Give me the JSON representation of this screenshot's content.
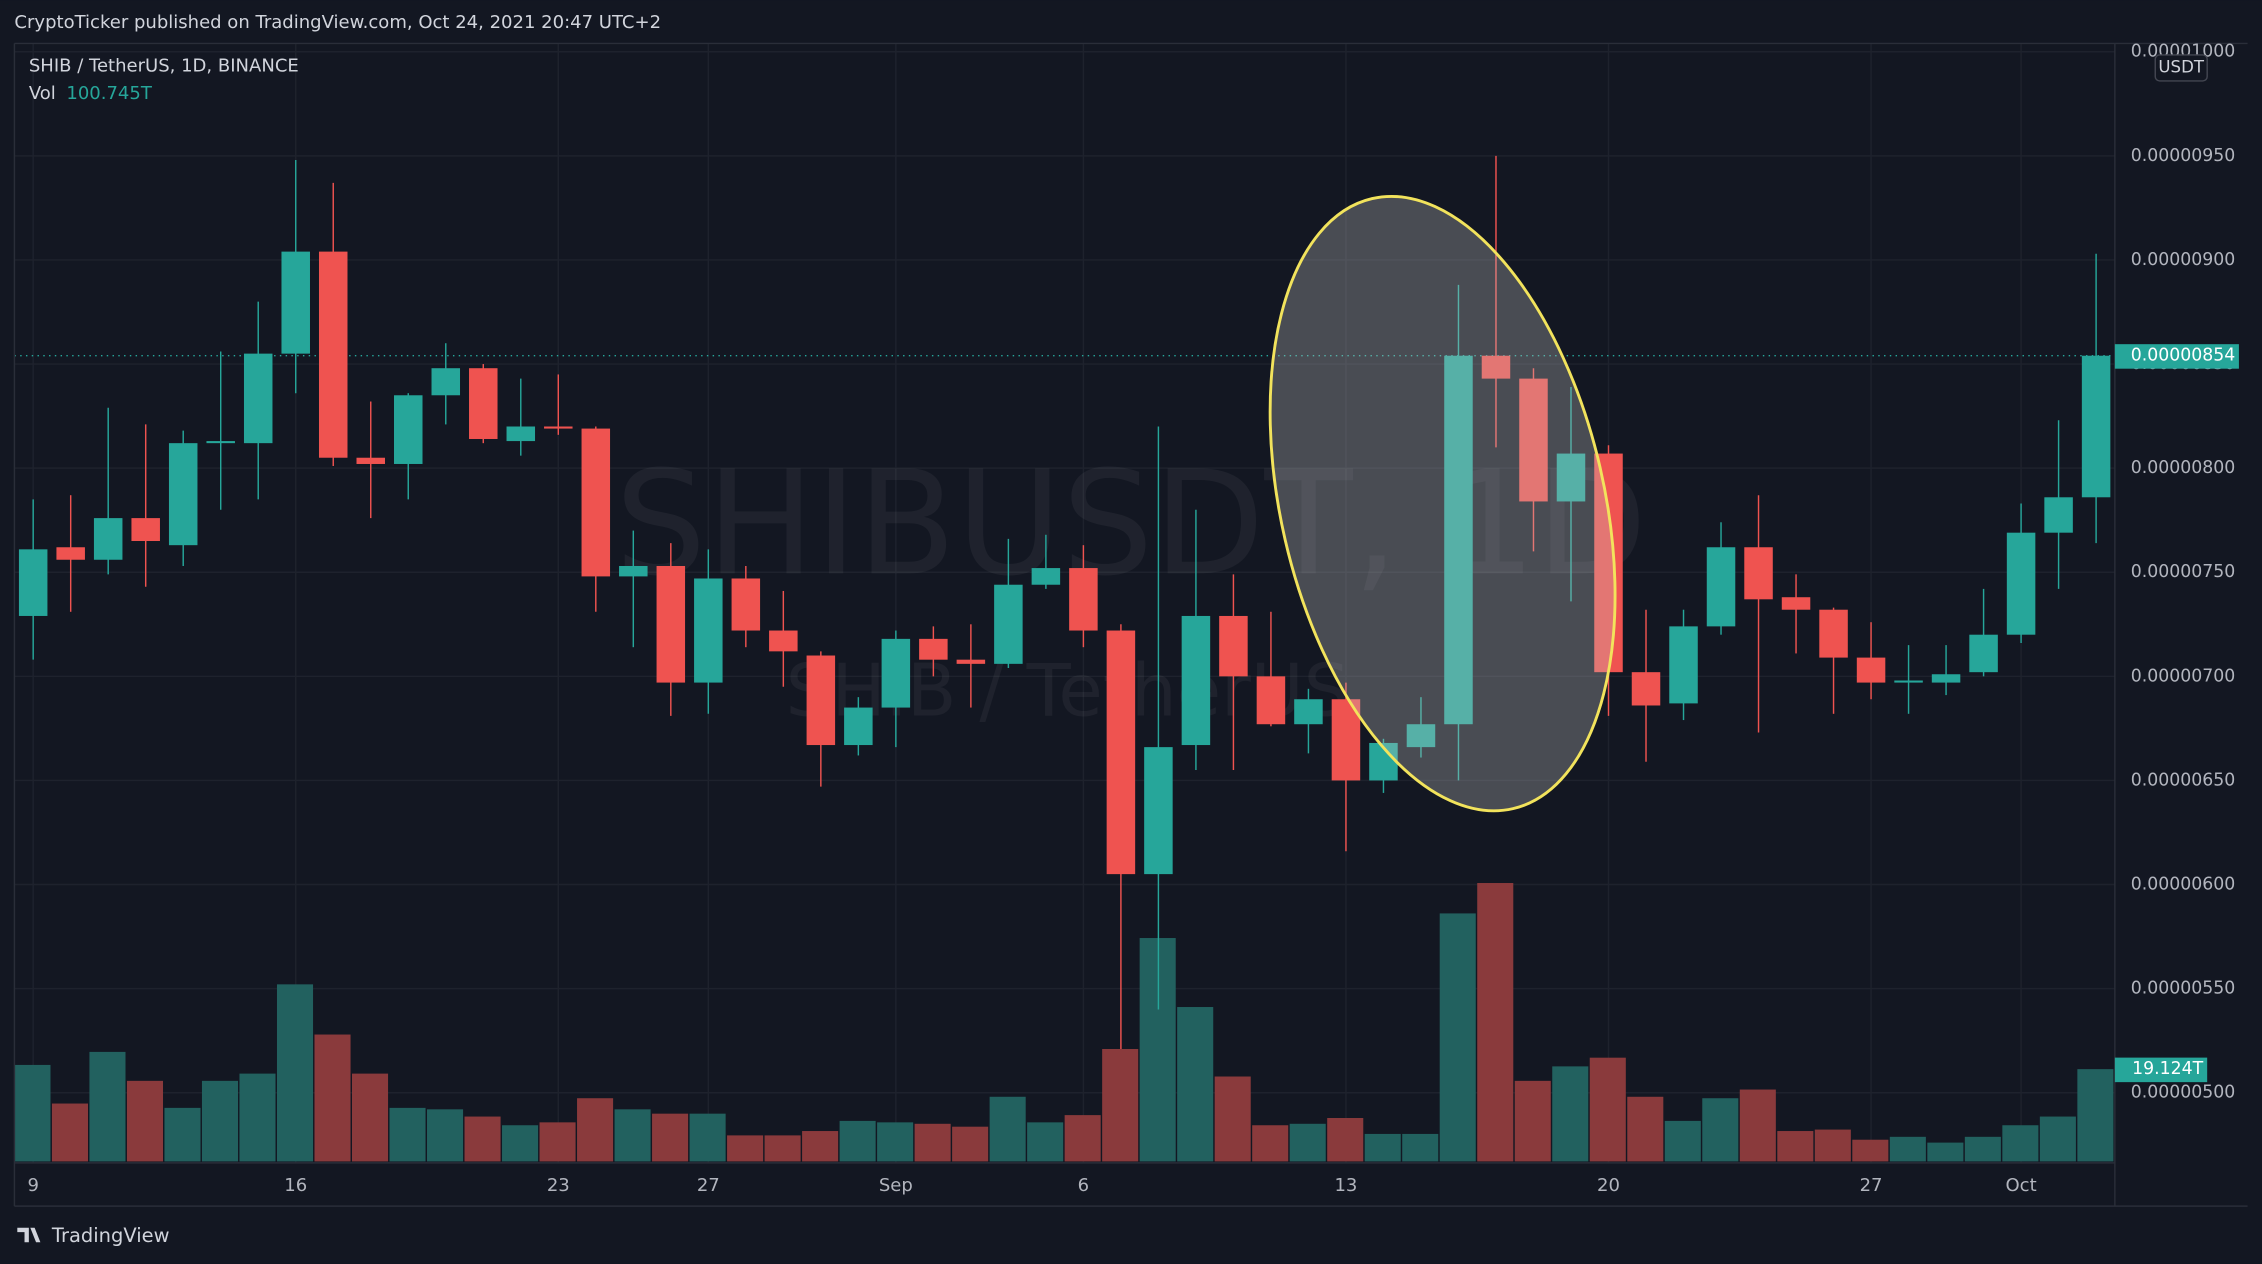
{
  "header": {
    "published": "CryptoTicker published on TradingView.com, Oct 24, 2021 20:47 UTC+2"
  },
  "footer": {
    "brand": "TradingView"
  },
  "chart_data": {
    "type": "candlestick",
    "title": "SHIB / TetherUS, 1D, BINANCE",
    "watermark": "SHIBUSDT, 1D",
    "watermark_subtitle": "SHIB / TetherUS",
    "currency": "USDT",
    "up_color": "#26a69a",
    "down_color": "#ef5350",
    "up_volume_color": "#22615f",
    "down_volume_color": "#8a3a3c",
    "annotation_color": "#f2e35c",
    "grid": true,
    "categories": [
      "9",
      null,
      null,
      null,
      null,
      null,
      null,
      "16",
      null,
      null,
      null,
      null,
      null,
      null,
      "23",
      null,
      null,
      null,
      "27",
      null,
      null,
      null,
      null,
      "Sep",
      null,
      null,
      null,
      null,
      "6",
      null,
      null,
      null,
      null,
      null,
      null,
      "13",
      null,
      null,
      null,
      null,
      null,
      null,
      "20",
      null,
      null,
      null,
      null,
      null,
      null,
      "27",
      null,
      null,
      null,
      "Oct",
      null,
      null
    ],
    "open": [
      7.29e-06,
      7.62e-06,
      7.56e-06,
      7.76e-06,
      7.63e-06,
      8.12e-06,
      8.12e-06,
      8.55e-06,
      9.04e-06,
      8.05e-06,
      8.02e-06,
      8.35e-06,
      8.48e-06,
      8.13e-06,
      8.2e-06,
      8.19e-06,
      7.48e-06,
      7.53e-06,
      6.97e-06,
      7.47e-06,
      7.22e-06,
      7.1e-06,
      6.67e-06,
      6.85e-06,
      7.18e-06,
      7.08e-06,
      7.06e-06,
      7.44e-06,
      7.52e-06,
      7.22e-06,
      6.05e-06,
      6.67e-06,
      7.29e-06,
      7e-06,
      6.77e-06,
      6.89e-06,
      6.5e-06,
      6.66e-06,
      6.77e-06,
      8.54e-06,
      8.43e-06,
      7.84e-06,
      8.07e-06,
      7.02e-06,
      6.87e-06,
      7.24e-06,
      7.62e-06,
      7.38e-06,
      7.32e-06,
      7.09e-06,
      6.97e-06,
      6.97e-06,
      7.02e-06,
      7.2e-06,
      7.69e-06,
      7.86e-06
    ],
    "high": [
      7.85e-06,
      7.87e-06,
      8.29e-06,
      8.21e-06,
      8.18e-06,
      8.56e-06,
      8.8e-06,
      9.48e-06,
      9.37e-06,
      8.32e-06,
      8.36e-06,
      8.6e-06,
      8.5e-06,
      8.43e-06,
      8.45e-06,
      8.2e-06,
      7.7e-06,
      7.64e-06,
      7.61e-06,
      7.53e-06,
      7.41e-06,
      7.12e-06,
      6.9e-06,
      7.22e-06,
      7.24e-06,
      7.25e-06,
      7.66e-06,
      7.68e-06,
      7.63e-06,
      7.25e-06,
      8.2e-06,
      7.8e-06,
      7.49e-06,
      7.31e-06,
      6.94e-06,
      6.97e-06,
      6.7e-06,
      6.9e-06,
      8.88e-06,
      9.5e-06,
      8.48e-06,
      8.39e-06,
      8.11e-06,
      7.32e-06,
      7.32e-06,
      7.74e-06,
      7.87e-06,
      7.49e-06,
      7.33e-06,
      7.26e-06,
      7.15e-06,
      7.15e-06,
      7.42e-06,
      7.83e-06,
      8.23e-06,
      9.03e-06
    ],
    "low": [
      7.08e-06,
      7.31e-06,
      7.49e-06,
      7.43e-06,
      7.53e-06,
      7.8e-06,
      7.85e-06,
      8.36e-06,
      8.01e-06,
      7.76e-06,
      7.85e-06,
      8.21e-06,
      8.12e-06,
      8.06e-06,
      8.16e-06,
      7.31e-06,
      7.14e-06,
      6.81e-06,
      6.82e-06,
      7.14e-06,
      6.95e-06,
      6.47e-06,
      6.62e-06,
      6.66e-06,
      7e-06,
      6.85e-06,
      7.04e-06,
      7.42e-06,
      7.14e-06,
      5.21e-06,
      5.4e-06,
      6.55e-06,
      6.55e-06,
      6.76e-06,
      6.63e-06,
      6.16e-06,
      6.44e-06,
      6.61e-06,
      6.5e-06,
      8.1e-06,
      7.6e-06,
      7.36e-06,
      6.81e-06,
      6.59e-06,
      6.79e-06,
      7.2e-06,
      6.73e-06,
      7.11e-06,
      6.82e-06,
      6.89e-06,
      6.82e-06,
      6.91e-06,
      7e-06,
      7.16e-06,
      7.42e-06,
      7.64e-06
    ],
    "close": [
      7.61e-06,
      7.56e-06,
      7.76e-06,
      7.65e-06,
      8.12e-06,
      8.13e-06,
      8.55e-06,
      9.04e-06,
      8.05e-06,
      8.02e-06,
      8.35e-06,
      8.48e-06,
      8.14e-06,
      8.2e-06,
      8.19e-06,
      7.48e-06,
      7.53e-06,
      6.97e-06,
      7.47e-06,
      7.22e-06,
      7.12e-06,
      6.67e-06,
      6.85e-06,
      7.18e-06,
      7.08e-06,
      7.06e-06,
      7.44e-06,
      7.52e-06,
      7.22e-06,
      6.05e-06,
      6.66e-06,
      7.29e-06,
      7e-06,
      6.77e-06,
      6.89e-06,
      6.5e-06,
      6.68e-06,
      6.77e-06,
      8.54e-06,
      8.43e-06,
      7.84e-06,
      8.07e-06,
      7.02e-06,
      6.86e-06,
      7.24e-06,
      7.62e-06,
      7.37e-06,
      7.32e-06,
      7.09e-06,
      6.97e-06,
      6.98e-06,
      7.01e-06,
      7.2e-06,
      7.69e-06,
      7.86e-06,
      8.54e-06
    ],
    "volume": {
      "name": "Vol",
      "legend_value": "100.745T",
      "last_label": "19.124T",
      "values": [
        20,
        12,
        22.7,
        16.7,
        11.1,
        16.7,
        18.2,
        36.7,
        26.3,
        18.2,
        11.1,
        10.8,
        9.3,
        7.5,
        8.1,
        13.1,
        10.8,
        9.9,
        9.9,
        5.4,
        5.4,
        6.3,
        8.4,
        8.1,
        7.8,
        7.2,
        13.4,
        8.1,
        9.6,
        23.3,
        46.3,
        32,
        17.6,
        7.5,
        7.8,
        9,
        5.7,
        5.7,
        51.4,
        57.7,
        16.7,
        19.7,
        21.5,
        13.4,
        8.4,
        13.1,
        14.9,
        6.3,
        6.6,
        4.5,
        5.1,
        3.9,
        5.1,
        7.5,
        9.3,
        19.124
      ]
    },
    "ylim": [
      4.67e-06,
      1.004e-05
    ],
    "yticks": [
      {
        "value": 5e-06,
        "label": "0.00000500"
      },
      {
        "value": 5.5e-06,
        "label": "0.00000550"
      },
      {
        "value": 6e-06,
        "label": "0.00000600"
      },
      {
        "value": 6.5e-06,
        "label": "0.00000650"
      },
      {
        "value": 7e-06,
        "label": "0.00000700"
      },
      {
        "value": 7.5e-06,
        "label": "0.00000750"
      },
      {
        "value": 8e-06,
        "label": "0.00000800"
      },
      {
        "value": 8.5e-06,
        "label": "0.00000850"
      },
      {
        "value": 9e-06,
        "label": "0.00000900"
      },
      {
        "value": 9.5e-06,
        "label": "0.00000950"
      },
      {
        "value": 1e-05,
        "label": "0.00001000"
      }
    ]
  }
}
